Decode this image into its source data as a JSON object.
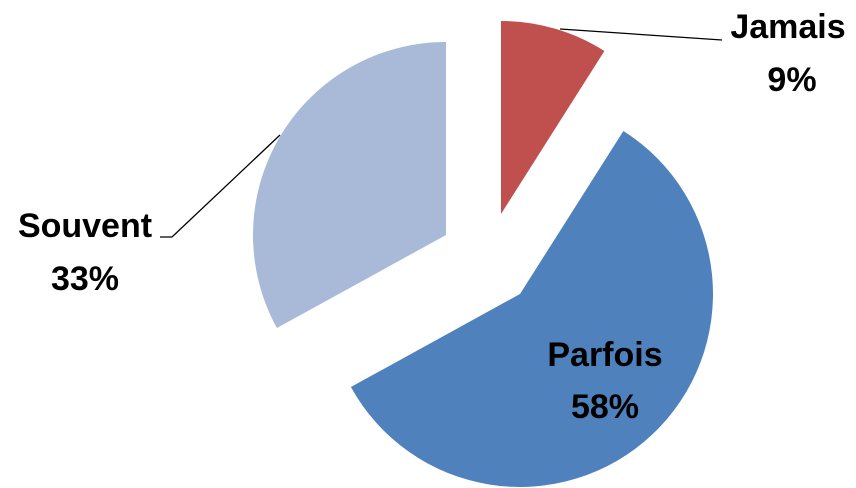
{
  "chart_data": {
    "type": "pie",
    "exploded": true,
    "title": "",
    "slices": [
      {
        "label": "Jamais",
        "value": 9,
        "display": "9%",
        "color": "#C0504D",
        "label_color": "#000000",
        "label_position": "outside-right"
      },
      {
        "label": "Parfois",
        "value": 58,
        "display": "58%",
        "color": "#4F81BD",
        "label_color": "#000000",
        "label_position": "inside"
      },
      {
        "label": "Souvent",
        "value": 33,
        "display": "33%",
        "color": "#A9B9D8",
        "label_color": "#000000",
        "label_position": "outside-left"
      }
    ],
    "legend": "none",
    "start_angle": "12 o'clock, clockwise"
  }
}
